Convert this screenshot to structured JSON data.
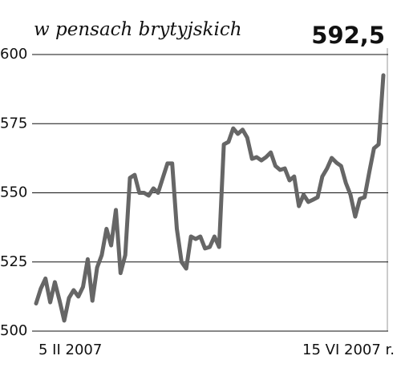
{
  "chart_data": {
    "type": "line",
    "subtitle": "w pensach brytyjskich",
    "current_value": "592,5",
    "x_labels": [
      "5 II 2007",
      "15 VI 2007 r."
    ],
    "color": "#666666",
    "ylim": [
      500,
      600
    ],
    "yticks": [
      500,
      525,
      550,
      575,
      600
    ],
    "grid": true,
    "values": [
      510,
      515.4,
      519,
      510.4,
      517.7,
      511,
      503.8,
      512,
      514.8,
      512.5,
      516,
      526,
      511,
      523,
      527.5,
      537,
      531,
      543.8,
      521,
      527.5,
      555.4,
      556.5,
      550,
      550,
      549,
      551.6,
      550,
      555.4,
      560.6,
      560.6,
      537,
      525,
      522.6,
      534.2,
      533.3,
      534.2,
      529.9,
      530.4,
      534.2,
      530.4,
      567.5,
      568.4,
      573.3,
      571.3,
      572.8,
      569.9,
      562.3,
      562.9,
      561.7,
      562.9,
      564.6,
      559.7,
      558.3,
      558.8,
      554.5,
      555.9,
      545.2,
      549.3,
      546.7,
      547.5,
      548.4,
      555.9,
      558.8,
      562.6,
      560.9,
      559.7,
      553.6,
      549.3,
      541.4,
      547.8,
      548.4,
      557.4,
      566.1,
      567.5,
      592.5
    ]
  }
}
